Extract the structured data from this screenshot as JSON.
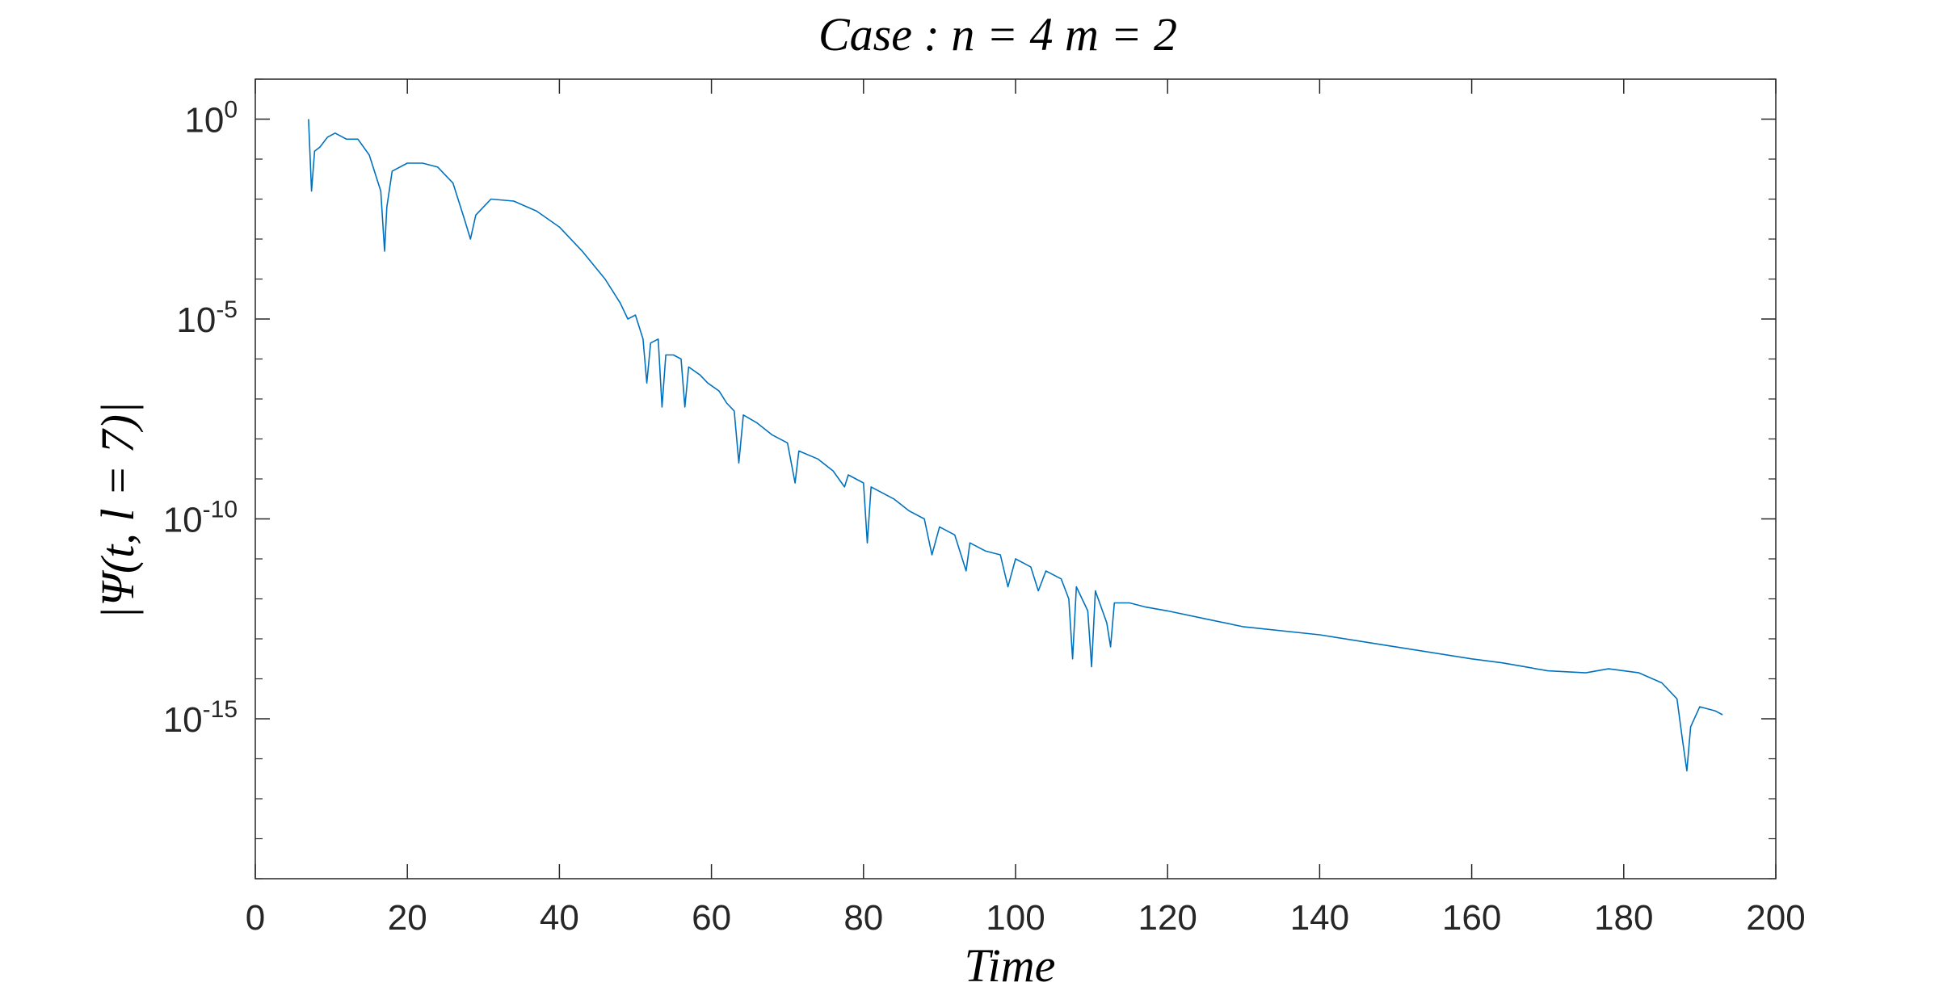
{
  "chart_data": {
    "type": "line",
    "title": "Case :  n = 4  m = 2",
    "xlabel": "Time",
    "ylabel": "|Ψ(t, l = 7)|",
    "yscale": "log",
    "xlim": [
      0,
      200
    ],
    "ylim_log10": [
      -19,
      1
    ],
    "grid": false,
    "x_ticks": [
      {
        "value": 0,
        "label": "0"
      },
      {
        "value": 20,
        "label": "20"
      },
      {
        "value": 40,
        "label": "40"
      },
      {
        "value": 60,
        "label": "60"
      },
      {
        "value": 80,
        "label": "80"
      },
      {
        "value": 100,
        "label": "100"
      },
      {
        "value": 120,
        "label": "120"
      },
      {
        "value": 140,
        "label": "140"
      },
      {
        "value": 160,
        "label": "160"
      },
      {
        "value": 180,
        "label": "180"
      },
      {
        "value": 200,
        "label": "200"
      }
    ],
    "y_ticks": [
      {
        "log10": 0,
        "base": "10",
        "exp": "0"
      },
      {
        "log10": -5,
        "base": "10",
        "exp": "-5"
      },
      {
        "log10": -10,
        "base": "10",
        "exp": "-10"
      },
      {
        "log10": -15,
        "base": "10",
        "exp": "-15"
      }
    ],
    "series": [
      {
        "color": "#0072BD",
        "points_log10": [
          [
            7.0,
            0.0
          ],
          [
            7.4,
            -1.8
          ],
          [
            7.8,
            -0.8
          ],
          [
            8.5,
            -0.7
          ],
          [
            9.5,
            -0.45
          ],
          [
            10.5,
            -0.35
          ],
          [
            12.0,
            -0.5
          ],
          [
            13.5,
            -0.5
          ],
          [
            15.0,
            -0.9
          ],
          [
            16.5,
            -1.8
          ],
          [
            17.0,
            -3.3
          ],
          [
            17.3,
            -2.2
          ],
          [
            18.0,
            -1.3
          ],
          [
            20.0,
            -1.1
          ],
          [
            22.0,
            -1.1
          ],
          [
            24.0,
            -1.2
          ],
          [
            26.0,
            -1.6
          ],
          [
            27.5,
            -2.5
          ],
          [
            28.3,
            -3.0
          ],
          [
            29.0,
            -2.4
          ],
          [
            31.0,
            -2.0
          ],
          [
            34.0,
            -2.05
          ],
          [
            37.0,
            -2.3
          ],
          [
            40.0,
            -2.7
          ],
          [
            43.0,
            -3.3
          ],
          [
            46.0,
            -4.0
          ],
          [
            48.0,
            -4.6
          ],
          [
            49.0,
            -5.0
          ],
          [
            50.0,
            -4.9
          ],
          [
            51.0,
            -5.5
          ],
          [
            51.5,
            -6.6
          ],
          [
            52.0,
            -5.6
          ],
          [
            53.0,
            -5.5
          ],
          [
            53.5,
            -7.2
          ],
          [
            54.0,
            -5.9
          ],
          [
            55.0,
            -5.9
          ],
          [
            56.0,
            -6.0
          ],
          [
            56.5,
            -7.2
          ],
          [
            57.0,
            -6.2
          ],
          [
            58.5,
            -6.4
          ],
          [
            59.5,
            -6.6
          ],
          [
            61.0,
            -6.8
          ],
          [
            62.0,
            -7.1
          ],
          [
            63.0,
            -7.3
          ],
          [
            63.6,
            -8.6
          ],
          [
            64.2,
            -7.4
          ],
          [
            66.0,
            -7.6
          ],
          [
            68.0,
            -7.9
          ],
          [
            70.0,
            -8.1
          ],
          [
            71.0,
            -9.1
          ],
          [
            71.5,
            -8.3
          ],
          [
            74.0,
            -8.5
          ],
          [
            76.0,
            -8.8
          ],
          [
            77.5,
            -9.2
          ],
          [
            78.0,
            -8.9
          ],
          [
            80.0,
            -9.1
          ],
          [
            80.5,
            -10.6
          ],
          [
            81.0,
            -9.2
          ],
          [
            84.0,
            -9.5
          ],
          [
            86.0,
            -9.8
          ],
          [
            88.0,
            -10.0
          ],
          [
            89.0,
            -10.9
          ],
          [
            90.0,
            -10.2
          ],
          [
            92.0,
            -10.4
          ],
          [
            93.5,
            -11.3
          ],
          [
            94.0,
            -10.6
          ],
          [
            96.0,
            -10.8
          ],
          [
            98.0,
            -10.9
          ],
          [
            99.0,
            -11.7
          ],
          [
            100.0,
            -11.0
          ],
          [
            102.0,
            -11.2
          ],
          [
            103.0,
            -11.8
          ],
          [
            104.0,
            -11.3
          ],
          [
            106.0,
            -11.5
          ],
          [
            107.0,
            -12.0
          ],
          [
            107.5,
            -13.5
          ],
          [
            108.0,
            -11.7
          ],
          [
            109.5,
            -12.3
          ],
          [
            110.0,
            -13.7
          ],
          [
            110.5,
            -11.8
          ],
          [
            112.0,
            -12.6
          ],
          [
            112.5,
            -13.2
          ],
          [
            113.0,
            -12.1
          ],
          [
            115.0,
            -12.1
          ],
          [
            117.0,
            -12.2
          ],
          [
            120.0,
            -12.3
          ],
          [
            125.0,
            -12.5
          ],
          [
            130.0,
            -12.7
          ],
          [
            140.0,
            -12.9
          ],
          [
            150.0,
            -13.2
          ],
          [
            160.0,
            -13.5
          ],
          [
            164.0,
            -13.6
          ],
          [
            167.0,
            -13.7
          ],
          [
            170.0,
            -13.8
          ],
          [
            175.0,
            -13.85
          ],
          [
            178.0,
            -13.75
          ],
          [
            182.0,
            -13.85
          ],
          [
            185.0,
            -14.1
          ],
          [
            187.0,
            -14.5
          ],
          [
            187.7,
            -15.5
          ],
          [
            188.3,
            -16.3
          ],
          [
            188.8,
            -15.2
          ],
          [
            190.0,
            -14.7
          ],
          [
            192.0,
            -14.8
          ],
          [
            193.0,
            -14.9
          ]
        ]
      }
    ]
  }
}
